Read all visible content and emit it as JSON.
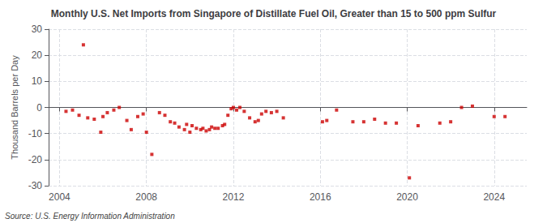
{
  "chart_data": {
    "type": "scatter",
    "title": "Monthly U.S. Net Imports from Singapore of Distillate Fuel Oil, Greater than 15 to 500 ppm Sulfur",
    "ylabel": "Thousand Barrels per Day",
    "annotations": [
      "Source: U.S. Energy Information Administration"
    ],
    "color": "#cc0000",
    "marker": "square",
    "grid": true,
    "xlim": [
      2003.5,
      2025.5
    ],
    "xticks": [
      2004,
      2008,
      2012,
      2016,
      2020,
      2024
    ],
    "ylim": [
      -30,
      30
    ],
    "yticks": [
      -30,
      -20,
      -10,
      0,
      10,
      20,
      30
    ],
    "x": [
      2004.3,
      2004.6,
      2004.9,
      2005.1,
      2005.3,
      2005.6,
      2005.9,
      2006.0,
      2006.2,
      2006.5,
      2006.75,
      2007.1,
      2007.3,
      2007.6,
      2007.85,
      2008.0,
      2008.25,
      2008.6,
      2008.85,
      2009.1,
      2009.3,
      2009.5,
      2009.75,
      2009.85,
      2010.0,
      2010.1,
      2010.3,
      2010.5,
      2010.6,
      2010.75,
      2010.9,
      2011.0,
      2011.15,
      2011.3,
      2011.5,
      2011.6,
      2011.75,
      2011.9,
      2012.0,
      2012.15,
      2012.3,
      2012.5,
      2012.75,
      2013.0,
      2013.15,
      2013.3,
      2013.5,
      2013.75,
      2014.0,
      2014.3,
      2016.1,
      2016.3,
      2016.75,
      2017.5,
      2018.0,
      2018.5,
      2019.0,
      2019.5,
      2020.1,
      2020.5,
      2021.5,
      2022.0,
      2022.5,
      2023.0,
      2024.0,
      2024.5
    ],
    "values": [
      -1.5,
      -1.0,
      -3.0,
      24.0,
      -4.0,
      -4.5,
      -9.5,
      -3.5,
      -2.0,
      -1.0,
      0.0,
      -5.0,
      -8.5,
      -3.5,
      -2.5,
      -9.5,
      -18.0,
      -2.0,
      -3.0,
      -5.5,
      -6.0,
      -7.5,
      -8.5,
      -6.5,
      -9.5,
      -7.0,
      -8.0,
      -8.5,
      -8.0,
      -9.0,
      -8.5,
      -7.5,
      -8.0,
      -8.0,
      -7.0,
      -6.5,
      -3.0,
      -0.5,
      0.0,
      -1.0,
      0.0,
      -1.5,
      -4.0,
      -5.5,
      -5.0,
      -2.5,
      -1.5,
      -2.0,
      -1.5,
      -4.0,
      -5.5,
      -5.0,
      -1.0,
      -5.5,
      -5.5,
      -4.5,
      -6.0,
      -6.0,
      -27.0,
      -7.0,
      -6.0,
      -5.5,
      0.0,
      0.5,
      -3.5,
      -3.5
    ]
  }
}
